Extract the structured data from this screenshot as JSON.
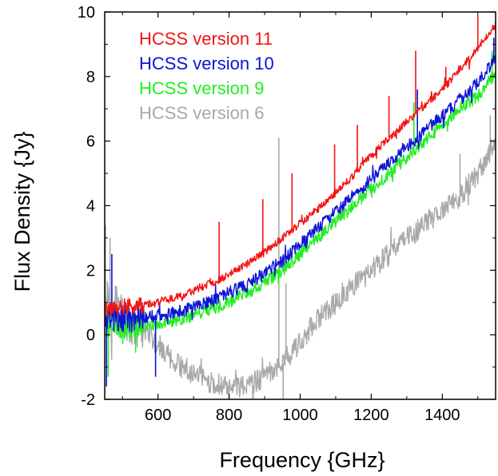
{
  "chart_data": {
    "type": "line",
    "title": "",
    "xlabel": "Frequency  {GHz}",
    "ylabel": "Flux Density  {Jy}",
    "xlim": [
      450,
      1550
    ],
    "ylim": [
      -2,
      10
    ],
    "xticks": [
      600,
      800,
      1000,
      1200,
      1400
    ],
    "yticks": [
      -2,
      0,
      2,
      4,
      6,
      8,
      10
    ],
    "xtick_labels": [
      "600",
      "800",
      "1000",
      "1200",
      "1400"
    ],
    "ytick_labels": [
      "-2",
      "0",
      "2",
      "4",
      "6",
      "8",
      "10"
    ],
    "grid": false,
    "legend_position": "top-left",
    "series": [
      {
        "name": "HCSS version 6",
        "color": "#a9a9a9",
        "noise": 0.35,
        "x": [
          450,
          500,
          550,
          600,
          650,
          700,
          750,
          800,
          850,
          900,
          950,
          1000,
          1050,
          1100,
          1150,
          1200,
          1250,
          1300,
          1350,
          1400,
          1450,
          1500,
          1550
        ],
        "y": [
          1.0,
          0.6,
          0.2,
          -0.3,
          -0.9,
          -1.2,
          -1.5,
          -1.6,
          -1.6,
          -1.3,
          -0.9,
          -0.2,
          0.5,
          1.0,
          1.5,
          2.0,
          2.5,
          3.0,
          3.4,
          3.9,
          4.3,
          5.0,
          6.0
        ],
        "spikes": [
          {
            "x": 452,
            "y": 3.4
          },
          {
            "x": 465,
            "y": 3.0
          },
          {
            "x": 940,
            "y": 6.1
          },
          {
            "x": 952,
            "y": -2.0
          },
          {
            "x": 960,
            "y": 1.6
          },
          {
            "x": 1450,
            "y": 5.6
          },
          {
            "x": 1535,
            "y": 6.8
          }
        ]
      },
      {
        "name": "HCSS version 9",
        "color": "#22ee22",
        "noise": 0.2,
        "x": [
          450,
          500,
          550,
          600,
          650,
          700,
          750,
          800,
          850,
          900,
          950,
          1000,
          1050,
          1100,
          1150,
          1200,
          1250,
          1300,
          1350,
          1400,
          1450,
          1500,
          1550
        ],
        "y": [
          0.4,
          0.3,
          0.3,
          0.35,
          0.45,
          0.6,
          0.8,
          1.0,
          1.3,
          1.6,
          2.0,
          2.5,
          3.0,
          3.5,
          4.0,
          4.5,
          5.0,
          5.5,
          6.0,
          6.5,
          7.0,
          7.4,
          8.1
        ],
        "spikes": [
          {
            "x": 460,
            "y": -1.3
          },
          {
            "x": 1320,
            "y": 7.2
          },
          {
            "x": 1540,
            "y": 8.8
          }
        ]
      },
      {
        "name": "HCSS version 10",
        "color": "#0a14d6",
        "noise": 0.2,
        "x": [
          450,
          500,
          550,
          600,
          650,
          700,
          750,
          800,
          850,
          900,
          950,
          1000,
          1050,
          1100,
          1150,
          1200,
          1250,
          1300,
          1350,
          1400,
          1450,
          1500,
          1550
        ],
        "y": [
          0.6,
          0.5,
          0.5,
          0.6,
          0.7,
          0.85,
          1.05,
          1.3,
          1.55,
          1.9,
          2.3,
          2.8,
          3.3,
          3.8,
          4.3,
          4.8,
          5.3,
          5.8,
          6.3,
          6.8,
          7.3,
          7.8,
          8.6
        ],
        "spikes": [
          {
            "x": 455,
            "y": -1.6
          },
          {
            "x": 470,
            "y": 2.5
          },
          {
            "x": 593,
            "y": -1.3
          },
          {
            "x": 1330,
            "y": 7.6
          },
          {
            "x": 1545,
            "y": 9.2
          }
        ]
      },
      {
        "name": "HCSS version 11",
        "color": "#f21414",
        "noise": 0.12,
        "x": [
          450,
          500,
          550,
          600,
          650,
          700,
          750,
          800,
          850,
          900,
          950,
          1000,
          1050,
          1100,
          1150,
          1200,
          1250,
          1300,
          1350,
          1400,
          1450,
          1500,
          1550
        ],
        "y": [
          0.8,
          0.85,
          0.9,
          1.0,
          1.15,
          1.35,
          1.6,
          1.85,
          2.2,
          2.55,
          3.0,
          3.45,
          3.9,
          4.4,
          4.95,
          5.55,
          6.1,
          6.6,
          7.1,
          7.6,
          8.2,
          8.9,
          9.6
        ],
        "spikes": [
          {
            "x": 772,
            "y": 3.5
          },
          {
            "x": 895,
            "y": 4.2
          },
          {
            "x": 977,
            "y": 5.0
          },
          {
            "x": 1097,
            "y": 5.9
          },
          {
            "x": 1115,
            "y": 4.5
          },
          {
            "x": 1161,
            "y": 6.5
          },
          {
            "x": 1250,
            "y": 7.4
          },
          {
            "x": 1325,
            "y": 8.8
          },
          {
            "x": 1410,
            "y": 8.3
          },
          {
            "x": 1500,
            "y": 9.9
          }
        ]
      }
    ],
    "legend": [
      {
        "label": "HCSS version 11",
        "color": "#f21414"
      },
      {
        "label": "HCSS version 10",
        "color": "#0a14d6"
      },
      {
        "label": "HCSS version 9",
        "color": "#22ee22"
      },
      {
        "label": "HCSS version 6",
        "color": "#a9a9a9"
      }
    ]
  }
}
